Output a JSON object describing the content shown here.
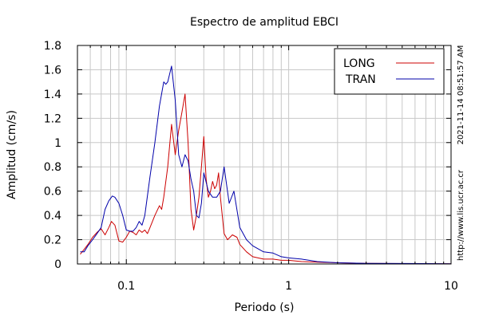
{
  "chart_data": {
    "type": "line",
    "title": "Espectro de amplitud EBCI",
    "xlabel": "Periodo (s)",
    "ylabel": "Amplitud (cm/s)",
    "x_scale": "log",
    "xlim": [
      0.05,
      10
    ],
    "ylim": [
      0,
      1.8
    ],
    "x_tick_labels": [
      "0.1",
      "1",
      "10"
    ],
    "y_tick_labels": [
      "0",
      "0.2",
      "0.4",
      "0.6",
      "0.8",
      "1",
      "1.2",
      "1.4",
      "1.6",
      "1.8"
    ],
    "grid": true,
    "legend_position": "top-right",
    "side_texts": [
      "2021-11-14 08:51:57 AM",
      "http://www.lis.ucr.ac.cr"
    ],
    "colors": {
      "LONG": "#cc0000",
      "TRAN": "#0000aa"
    },
    "series": [
      {
        "name": "LONG",
        "x": [
          0.052,
          0.055,
          0.058,
          0.062,
          0.066,
          0.07,
          0.074,
          0.078,
          0.081,
          0.085,
          0.09,
          0.095,
          0.1,
          0.105,
          0.11,
          0.115,
          0.12,
          0.125,
          0.13,
          0.135,
          0.14,
          0.15,
          0.16,
          0.165,
          0.17,
          0.18,
          0.19,
          0.2,
          0.21,
          0.22,
          0.23,
          0.24,
          0.25,
          0.26,
          0.27,
          0.28,
          0.29,
          0.3,
          0.31,
          0.32,
          0.33,
          0.34,
          0.35,
          0.36,
          0.37,
          0.38,
          0.4,
          0.42,
          0.45,
          0.48,
          0.5,
          0.55,
          0.6,
          0.7,
          0.8,
          0.9,
          1.0,
          1.2,
          1.5,
          2.0,
          3.0,
          5.0,
          7.0,
          10.0
        ],
        "y": [
          0.08,
          0.12,
          0.16,
          0.22,
          0.26,
          0.29,
          0.24,
          0.3,
          0.35,
          0.32,
          0.19,
          0.18,
          0.22,
          0.27,
          0.26,
          0.24,
          0.28,
          0.26,
          0.28,
          0.25,
          0.3,
          0.4,
          0.48,
          0.45,
          0.55,
          0.8,
          1.15,
          0.9,
          1.1,
          1.25,
          1.4,
          1.0,
          0.45,
          0.28,
          0.4,
          0.55,
          0.8,
          1.05,
          0.7,
          0.55,
          0.6,
          0.68,
          0.62,
          0.65,
          0.75,
          0.55,
          0.25,
          0.2,
          0.24,
          0.22,
          0.16,
          0.1,
          0.06,
          0.04,
          0.04,
          0.03,
          0.03,
          0.02,
          0.015,
          0.01,
          0.005,
          0.003,
          0.002,
          0.001
        ]
      },
      {
        "name": "TRAN",
        "x": [
          0.052,
          0.055,
          0.058,
          0.062,
          0.066,
          0.07,
          0.074,
          0.078,
          0.082,
          0.085,
          0.09,
          0.095,
          0.1,
          0.105,
          0.11,
          0.115,
          0.12,
          0.125,
          0.13,
          0.14,
          0.15,
          0.16,
          0.17,
          0.175,
          0.18,
          0.19,
          0.2,
          0.21,
          0.22,
          0.23,
          0.24,
          0.25,
          0.26,
          0.27,
          0.28,
          0.29,
          0.3,
          0.32,
          0.34,
          0.36,
          0.38,
          0.4,
          0.43,
          0.46,
          0.5,
          0.55,
          0.6,
          0.7,
          0.8,
          0.9,
          1.0,
          1.2,
          1.5,
          2.0,
          3.0,
          5.0,
          7.0,
          10.0
        ],
        "y": [
          0.1,
          0.1,
          0.15,
          0.2,
          0.25,
          0.3,
          0.45,
          0.52,
          0.56,
          0.55,
          0.5,
          0.4,
          0.28,
          0.27,
          0.27,
          0.3,
          0.35,
          0.32,
          0.4,
          0.72,
          1.0,
          1.3,
          1.5,
          1.48,
          1.5,
          1.63,
          1.35,
          0.9,
          0.8,
          0.9,
          0.85,
          0.7,
          0.6,
          0.4,
          0.38,
          0.5,
          0.75,
          0.6,
          0.55,
          0.55,
          0.6,
          0.8,
          0.5,
          0.6,
          0.3,
          0.2,
          0.15,
          0.1,
          0.09,
          0.06,
          0.05,
          0.04,
          0.02,
          0.01,
          0.005,
          0.004,
          0.003,
          0.002
        ]
      }
    ]
  }
}
